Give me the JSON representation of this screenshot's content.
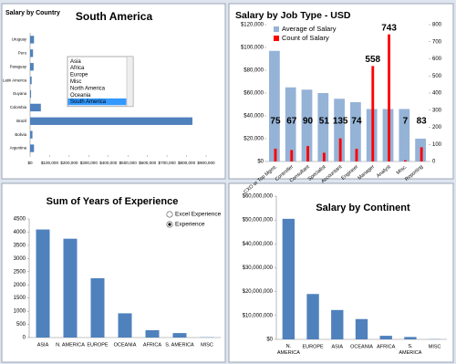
{
  "chart_data": [
    {
      "type": "barh",
      "caption": "Salary by Country",
      "title": "South America",
      "categories": [
        "Uruguay",
        "Peru",
        "Paraguay",
        "Latin America",
        "Guyana",
        "Colombia",
        "Brazil",
        "Bolivia",
        "Argentina"
      ],
      "values": [
        20000,
        15000,
        18000,
        8000,
        5000,
        55000,
        830000,
        12000,
        20000
      ],
      "color": "#4f81bd",
      "xlim": [
        0,
        900000
      ],
      "xticks": [
        {
          "value": 0,
          "label": "$0"
        },
        {
          "value": 100000,
          "label": "$100,000"
        },
        {
          "value": 200000,
          "label": "$200,000"
        },
        {
          "value": 300000,
          "label": "$300,000"
        },
        {
          "value": 400000,
          "label": "$400,000"
        },
        {
          "value": 500000,
          "label": "$500,000"
        },
        {
          "value": 600000,
          "label": "$600,000"
        },
        {
          "value": 700000,
          "label": "$700,000"
        },
        {
          "value": 800000,
          "label": "$800,000"
        },
        {
          "value": 900000,
          "label": "$900,000"
        }
      ],
      "filter_options": [
        "Asia",
        "Africa",
        "Europe",
        "Misc",
        "North America",
        "Oceania",
        "South America"
      ],
      "selected_filter": 6
    },
    {
      "type": "combo",
      "title": "Salary by Job Type - USD",
      "categories": [
        "CXO or Top Mgmt.",
        "Controller",
        "Consultant",
        "Specialist",
        "Accountant",
        "Engineer",
        "Manager",
        "Analyst",
        "Misc.",
        "Reporting"
      ],
      "series": [
        {
          "name": "Average of Salary",
          "color": "#95b3d7",
          "values": [
            97000,
            65000,
            63000,
            60000,
            55000,
            52000,
            46000,
            46000,
            46000,
            20000
          ]
        },
        {
          "name": "Count of Salary",
          "color": "#ff0000",
          "axis": "y2",
          "data_labels": true,
          "values": [
            75,
            67,
            90,
            51,
            135,
            74,
            558,
            743,
            7,
            83
          ]
        }
      ],
      "ylim": [
        0,
        120000
      ],
      "yticks": [
        {
          "value": 0,
          "label": "$0"
        },
        {
          "value": 20000,
          "label": "$20,000"
        },
        {
          "value": 40000,
          "label": "$40,000"
        },
        {
          "value": 60000,
          "label": "$60,000"
        },
        {
          "value": 80000,
          "label": "$80,000"
        },
        {
          "value": 100000,
          "label": "$100,000"
        },
        {
          "value": 120000,
          "label": "$120,000"
        }
      ],
      "y2lim": [
        0,
        800
      ],
      "y2ticks": [
        0,
        100,
        200,
        300,
        400,
        500,
        600,
        700,
        800
      ]
    },
    {
      "type": "bar",
      "title": "Sum of Years of Experience",
      "categories": [
        "ASIA",
        "N. AMERICA",
        "EUROPE",
        "OCEANIA",
        "AFRICA",
        "S. AMERICA",
        "MISC"
      ],
      "values": [
        4100,
        3750,
        2250,
        920,
        280,
        170,
        10
      ],
      "color": "#4f81bd",
      "ylim": [
        0,
        4500
      ],
      "yticks": [
        0,
        500,
        1000,
        1500,
        2000,
        2500,
        3000,
        3500,
        4000,
        4500
      ],
      "options": [
        "Excel Experience",
        "Experience"
      ],
      "selected_option": 1
    },
    {
      "type": "bar",
      "title": "Salary by Continent",
      "categories": [
        "N. AMERICA",
        "EUROPE",
        "ASIA",
        "OCEANIA",
        "AFRICA",
        "S. AMERICA",
        "MISC"
      ],
      "values": [
        50500000,
        19000000,
        12300000,
        8500000,
        1500000,
        1000000,
        100000
      ],
      "color": "#4f81bd",
      "ylim": [
        0,
        60000000
      ],
      "yticks": [
        {
          "value": 0,
          "label": "$0"
        },
        {
          "value": 10000000,
          "label": "$10,000,000"
        },
        {
          "value": 20000000,
          "label": "$20,000,000"
        },
        {
          "value": 30000000,
          "label": "$30,000,000"
        },
        {
          "value": 40000000,
          "label": "$40,000,000"
        },
        {
          "value": 50000000,
          "label": "$50,000,000"
        },
        {
          "value": 60000000,
          "label": "$60,000,000"
        }
      ]
    }
  ]
}
